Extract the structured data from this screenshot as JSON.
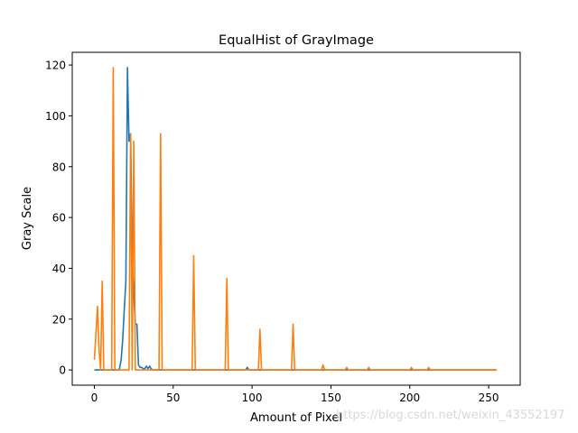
{
  "chart_data": {
    "type": "line",
    "title": "EqualHist of GrayImage",
    "xlabel": "Amount of Pixel",
    "ylabel": "Gray Scale",
    "xlim": [
      -14,
      270
    ],
    "ylim": [
      -6,
      125
    ],
    "xticks": [
      0,
      50,
      100,
      150,
      200,
      250
    ],
    "yticks": [
      0,
      20,
      40,
      60,
      80,
      100,
      120
    ],
    "grid": false,
    "series": [
      {
        "color": "#1f77b4",
        "points": [
          [
            0,
            0
          ],
          [
            15,
            0
          ],
          [
            16,
            0.5
          ],
          [
            17,
            4
          ],
          [
            18,
            12
          ],
          [
            19,
            24
          ],
          [
            20,
            35
          ],
          [
            21,
            119
          ],
          [
            22,
            90
          ],
          [
            23,
            93
          ],
          [
            24,
            45
          ],
          [
            25,
            30
          ],
          [
            26,
            18
          ],
          [
            27,
            18
          ],
          [
            28,
            2
          ],
          [
            29,
            1
          ],
          [
            30,
            1
          ],
          [
            31,
            0.5
          ],
          [
            32,
            0.5
          ],
          [
            33,
            1.5
          ],
          [
            34,
            0.5
          ],
          [
            35,
            1.5
          ],
          [
            36,
            0.5
          ],
          [
            37,
            0
          ],
          [
            96,
            0
          ],
          [
            97,
            1
          ],
          [
            98,
            0
          ],
          [
            255,
            0
          ]
        ]
      },
      {
        "color": "#ff7f0e",
        "points": [
          [
            0,
            4
          ],
          [
            1,
            14
          ],
          [
            2,
            25
          ],
          [
            3,
            8
          ],
          [
            4,
            0
          ],
          [
            5,
            35
          ],
          [
            6,
            0
          ],
          [
            11,
            0
          ],
          [
            12,
            119
          ],
          [
            13,
            0
          ],
          [
            22,
            0
          ],
          [
            23,
            93
          ],
          [
            24,
            0
          ],
          [
            25,
            90
          ],
          [
            26,
            0
          ],
          [
            41,
            0
          ],
          [
            42,
            93
          ],
          [
            43,
            0
          ],
          [
            62,
            0
          ],
          [
            63,
            45
          ],
          [
            64,
            0
          ],
          [
            83,
            0
          ],
          [
            84,
            36
          ],
          [
            85,
            0
          ],
          [
            104,
            0
          ],
          [
            105,
            16
          ],
          [
            106,
            0
          ],
          [
            125,
            0
          ],
          [
            126,
            18
          ],
          [
            127,
            0
          ],
          [
            144,
            0
          ],
          [
            145,
            2
          ],
          [
            146,
            0
          ],
          [
            159,
            0
          ],
          [
            160,
            1
          ],
          [
            161,
            0
          ],
          [
            173,
            0
          ],
          [
            174,
            1
          ],
          [
            175,
            0
          ],
          [
            200,
            0
          ],
          [
            201,
            1
          ],
          [
            202,
            0
          ],
          [
            211,
            0
          ],
          [
            212,
            1
          ],
          [
            213,
            0
          ],
          [
            255,
            0
          ]
        ]
      }
    ]
  },
  "watermark": "https://blog.csdn.net/weixin_43552197"
}
